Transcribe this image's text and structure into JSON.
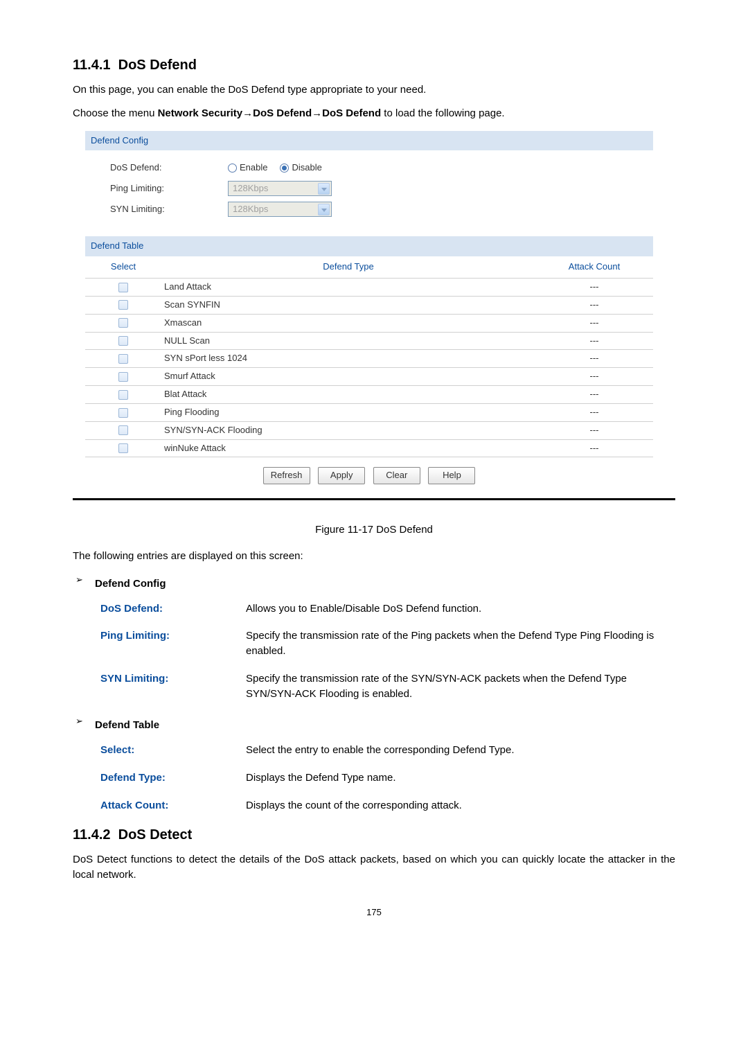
{
  "section1": {
    "number": "11.4.1",
    "title": "DoS Defend"
  },
  "intro1": "On this page, you can enable the DoS Defend type appropriate to your need.",
  "menuPath": {
    "prefix": "Choose the menu ",
    "bold": "Network Security→DoS Defend→DoS Defend",
    "suffix": " to load the following page."
  },
  "ui": {
    "panel1_title": "Defend Config",
    "fields": {
      "dos_label": "DoS Defend:",
      "enable": "Enable",
      "disable": "Disable",
      "ping_label": "Ping Limiting:",
      "syn_label": "SYN Limiting:",
      "rate_value": "128Kbps",
      "dos_selected": "disable"
    },
    "panel2_title": "Defend Table",
    "columns": {
      "select": "Select",
      "type": "Defend Type",
      "count": "Attack Count"
    },
    "rows": [
      {
        "type": "Land Attack",
        "count": "---"
      },
      {
        "type": "Scan SYNFIN",
        "count": "---"
      },
      {
        "type": "Xmascan",
        "count": "---"
      },
      {
        "type": "NULL Scan",
        "count": "---"
      },
      {
        "type": "SYN sPort less 1024",
        "count": "---"
      },
      {
        "type": "Smurf Attack",
        "count": "---"
      },
      {
        "type": "Blat Attack",
        "count": "---"
      },
      {
        "type": "Ping Flooding",
        "count": "---"
      },
      {
        "type": "SYN/SYN-ACK Flooding",
        "count": "---"
      },
      {
        "type": "winNuke Attack",
        "count": "---"
      }
    ],
    "buttons": {
      "refresh": "Refresh",
      "apply": "Apply",
      "clear": "Clear",
      "help": "Help"
    }
  },
  "figure_caption": "Figure 11-17 DoS Defend",
  "entries_intro": "The following entries are displayed on this screen:",
  "group1_title": "Defend Config",
  "group1": [
    {
      "name": "DoS Defend:",
      "desc": "Allows you to Enable/Disable DoS Defend function."
    },
    {
      "name": "Ping Limiting:",
      "desc": "Specify the transmission rate of the Ping packets when the Defend Type Ping Flooding is enabled."
    },
    {
      "name": "SYN Limiting:",
      "desc": "Specify the transmission rate of the SYN/SYN-ACK packets when the Defend Type SYN/SYN-ACK Flooding is enabled."
    }
  ],
  "group2_title": "Defend Table",
  "group2": [
    {
      "name": "Select:",
      "desc": "Select the entry to enable the corresponding Defend Type."
    },
    {
      "name": "Defend Type:",
      "desc": "Displays the Defend Type name."
    },
    {
      "name": "Attack Count:",
      "desc": "Displays the count of the corresponding attack."
    }
  ],
  "section2": {
    "number": "11.4.2",
    "title": "DoS Detect"
  },
  "intro2": "DoS Detect functions to detect the details of the DoS attack packets, based on which you can quickly locate the attacker in the local network.",
  "page_number": "175",
  "colors": {
    "panel_header_bg": "#d8e4f2",
    "link_blue": "#0a4d9c"
  }
}
